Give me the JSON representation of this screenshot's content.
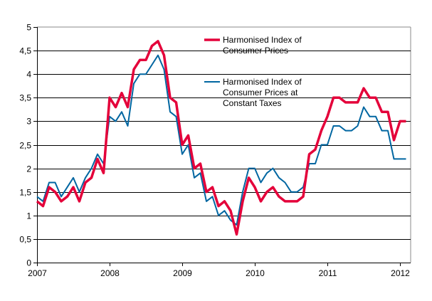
{
  "chart_data": {
    "type": "line",
    "title": "",
    "xlabel": "",
    "ylabel": "",
    "x_start": "2007-01",
    "x_end": "2012-02",
    "x_ticks": [
      "2007",
      "2008",
      "2009",
      "2010",
      "2011",
      "2012"
    ],
    "y_ticks": [
      "0",
      "0,5",
      "1",
      "1,5",
      "2",
      "2,5",
      "3",
      "3,5",
      "4",
      "4,5",
      "5"
    ],
    "ylim": [
      0,
      5
    ],
    "grid": "horizontal",
    "legend_position": "top-right",
    "series": [
      {
        "name": "Harmonised Index of Consumer Prices",
        "legend_lines": [
          "Harmonised Index of",
          "Consumer Prices"
        ],
        "color": "#e4003a",
        "values": [
          1.3,
          1.2,
          1.6,
          1.5,
          1.3,
          1.4,
          1.6,
          1.3,
          1.7,
          1.8,
          2.2,
          1.9,
          3.5,
          3.3,
          3.6,
          3.3,
          4.1,
          4.3,
          4.3,
          4.6,
          4.7,
          4.4,
          3.5,
          3.4,
          2.5,
          2.7,
          2.0,
          2.1,
          1.5,
          1.6,
          1.2,
          1.3,
          1.1,
          0.6,
          1.3,
          1.8,
          1.6,
          1.3,
          1.5,
          1.6,
          1.4,
          1.3,
          1.3,
          1.3,
          1.4,
          2.3,
          2.4,
          2.8,
          3.1,
          3.5,
          3.5,
          3.4,
          3.4,
          3.4,
          3.7,
          3.5,
          3.5,
          3.2,
          3.2,
          2.6,
          3.0,
          3.0
        ]
      },
      {
        "name": "Harmonised Index of Consumer Prices at Constant Taxes",
        "legend_lines": [
          "Harmonised Index of",
          "Consumer Prices at",
          "Constant Taxes"
        ],
        "color": "#0066a1",
        "values": [
          1.4,
          1.3,
          1.7,
          1.7,
          1.4,
          1.6,
          1.8,
          1.5,
          1.8,
          2.0,
          2.3,
          2.1,
          3.1,
          3.0,
          3.2,
          2.9,
          3.8,
          4.0,
          4.0,
          4.2,
          4.4,
          4.1,
          3.2,
          3.1,
          2.3,
          2.5,
          1.8,
          1.9,
          1.3,
          1.4,
          1.0,
          1.1,
          0.9,
          0.8,
          1.5,
          2.0,
          2.0,
          1.7,
          1.9,
          2.0,
          1.8,
          1.7,
          1.5,
          1.5,
          1.6,
          2.1,
          2.1,
          2.5,
          2.5,
          2.9,
          2.9,
          2.8,
          2.8,
          2.9,
          3.3,
          3.1,
          3.1,
          2.8,
          2.8,
          2.2,
          2.2,
          2.2
        ]
      }
    ]
  }
}
